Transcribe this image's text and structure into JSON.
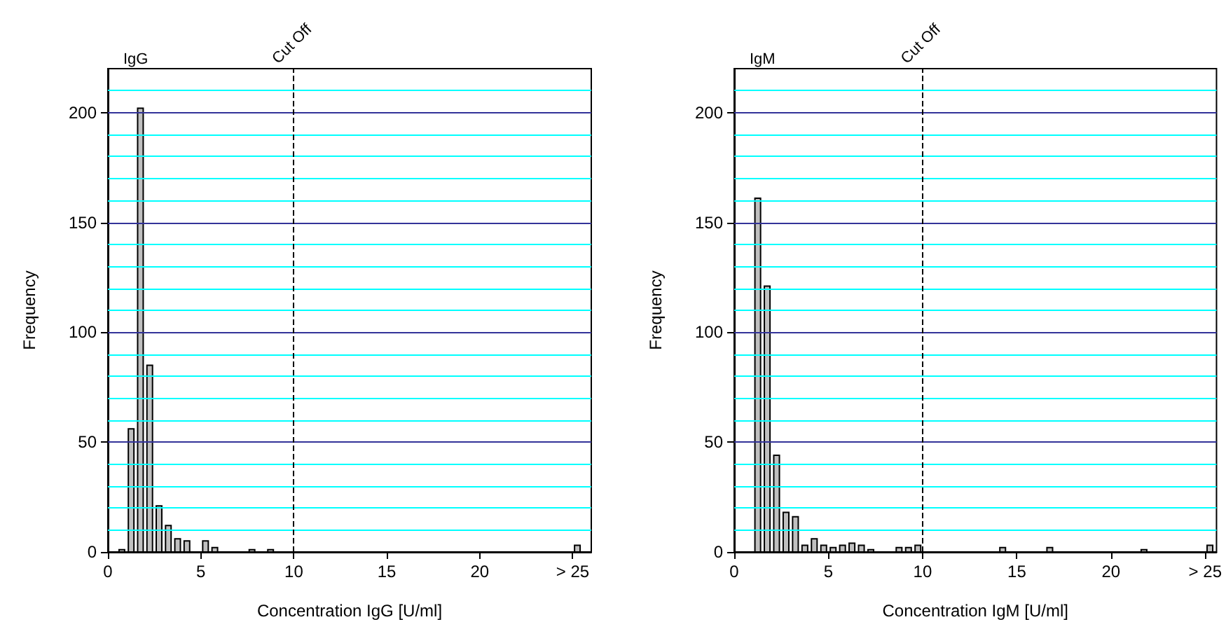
{
  "chart_data": [
    {
      "type": "histogram",
      "title": "IgG",
      "xlabel": "Concentration IgG [U/ml]",
      "ylabel": "Frequency",
      "bins": [
        0.5,
        1,
        1.5,
        2,
        2.5,
        3,
        3.5,
        4,
        4.5,
        5,
        5.5,
        6,
        6.5,
        7,
        7.5,
        8,
        8.5,
        9,
        9.5,
        10,
        10.5,
        11,
        11.5,
        12,
        12.5,
        13,
        13.5,
        14,
        14.5,
        15,
        15.5,
        16,
        16.5,
        17,
        17.5,
        18,
        18.5,
        19,
        19.5,
        20,
        20.5,
        21,
        21.5,
        22,
        22.5,
        23,
        23.5,
        24,
        24.5,
        25,
        25.5
      ],
      "values": [
        1,
        56,
        202,
        85,
        21,
        12,
        6,
        5,
        0,
        5,
        2,
        0,
        0,
        0,
        1,
        0,
        1,
        0,
        0,
        0,
        0,
        0,
        0,
        0,
        0,
        0,
        0,
        0,
        0,
        0,
        0,
        0,
        0,
        0,
        0,
        0,
        0,
        0,
        0,
        0,
        0,
        0,
        0,
        0,
        0,
        0,
        0,
        0,
        0,
        3
      ],
      "color": "#c0c0c0",
      "xlim": [
        0,
        26
      ],
      "xticks": [
        0,
        5,
        10,
        15,
        20,
        {
          "value": 25,
          "label": "> 25"
        }
      ],
      "ylim": [
        0,
        220
      ],
      "yticks": [
        0,
        {
          "value": 10,
          "label": null
        },
        {
          "value": 20,
          "label": null
        },
        {
          "value": 30,
          "label": null
        },
        {
          "value": 40,
          "label": null
        },
        50,
        {
          "value": 60,
          "label": null
        },
        {
          "value": 70,
          "label": null
        },
        {
          "value": 80,
          "label": null
        },
        {
          "value": 90,
          "label": null
        },
        100,
        {
          "value": 110,
          "label": null
        },
        {
          "value": 120,
          "label": null
        },
        {
          "value": 130,
          "label": null
        },
        {
          "value": 140,
          "label": null
        },
        150,
        {
          "value": 160,
          "label": null
        },
        {
          "value": 170,
          "label": null
        },
        {
          "value": 180,
          "label": null
        },
        {
          "value": 190,
          "label": null
        },
        200,
        {
          "value": 210,
          "label": null
        }
      ],
      "grid": "y",
      "ref_lines": [
        {
          "axis": "x",
          "value": 10,
          "label": "Cut Off",
          "color": "#000000",
          "line_style": "dashed"
        }
      ]
    },
    {
      "type": "histogram",
      "title": "IgM",
      "xlabel": "Concentration IgM [U/ml]",
      "ylabel": "Frequency",
      "bins": [
        1,
        1.5,
        2,
        2.5,
        3,
        3.5,
        4,
        4.5,
        5,
        5.5,
        6,
        6.5,
        7,
        7.5,
        8,
        8.5,
        9,
        9.5,
        10,
        10.5,
        11,
        11.5,
        12,
        12.5,
        13,
        13.5,
        14,
        14.5,
        15,
        15.5,
        16,
        16.5,
        17,
        17.5,
        18,
        18.5,
        19,
        19.5,
        20,
        20.5,
        21,
        21.5,
        22,
        22.5,
        23,
        23.5,
        24,
        24.5,
        25,
        25.5
      ],
      "values": [
        161,
        121,
        44,
        18,
        16,
        3,
        6,
        3,
        2,
        3,
        4,
        3,
        1,
        0,
        0,
        2,
        2,
        3,
        0,
        0,
        0,
        0,
        0,
        0,
        0,
        0,
        2,
        0,
        0,
        0,
        0,
        2,
        0,
        0,
        0,
        0,
        0,
        0,
        0,
        0,
        0,
        1,
        0,
        0,
        0,
        0,
        0,
        0,
        3
      ],
      "color": "#c0c0c0",
      "xlim": [
        0,
        25.6
      ],
      "xticks": [
        0,
        5,
        10,
        15,
        20,
        {
          "value": 25,
          "label": "> 25"
        }
      ],
      "ylim": [
        0,
        220
      ],
      "yticks": [
        0,
        {
          "value": 10,
          "label": null
        },
        {
          "value": 20,
          "label": null
        },
        {
          "value": 30,
          "label": null
        },
        {
          "value": 40,
          "label": null
        },
        50,
        {
          "value": 60,
          "label": null
        },
        {
          "value": 70,
          "label": null
        },
        {
          "value": 80,
          "label": null
        },
        {
          "value": 90,
          "label": null
        },
        100,
        {
          "value": 110,
          "label": null
        },
        {
          "value": 120,
          "label": null
        },
        {
          "value": 130,
          "label": null
        },
        {
          "value": 140,
          "label": null
        },
        150,
        {
          "value": 160,
          "label": null
        },
        {
          "value": 170,
          "label": null
        },
        {
          "value": 180,
          "label": null
        },
        {
          "value": 190,
          "label": null
        },
        200,
        {
          "value": 210,
          "label": null
        }
      ],
      "grid": "y",
      "ref_lines": [
        {
          "axis": "x",
          "value": 10,
          "label": "Cut Off",
          "color": "#000000",
          "line_style": "dashed"
        }
      ]
    }
  ]
}
